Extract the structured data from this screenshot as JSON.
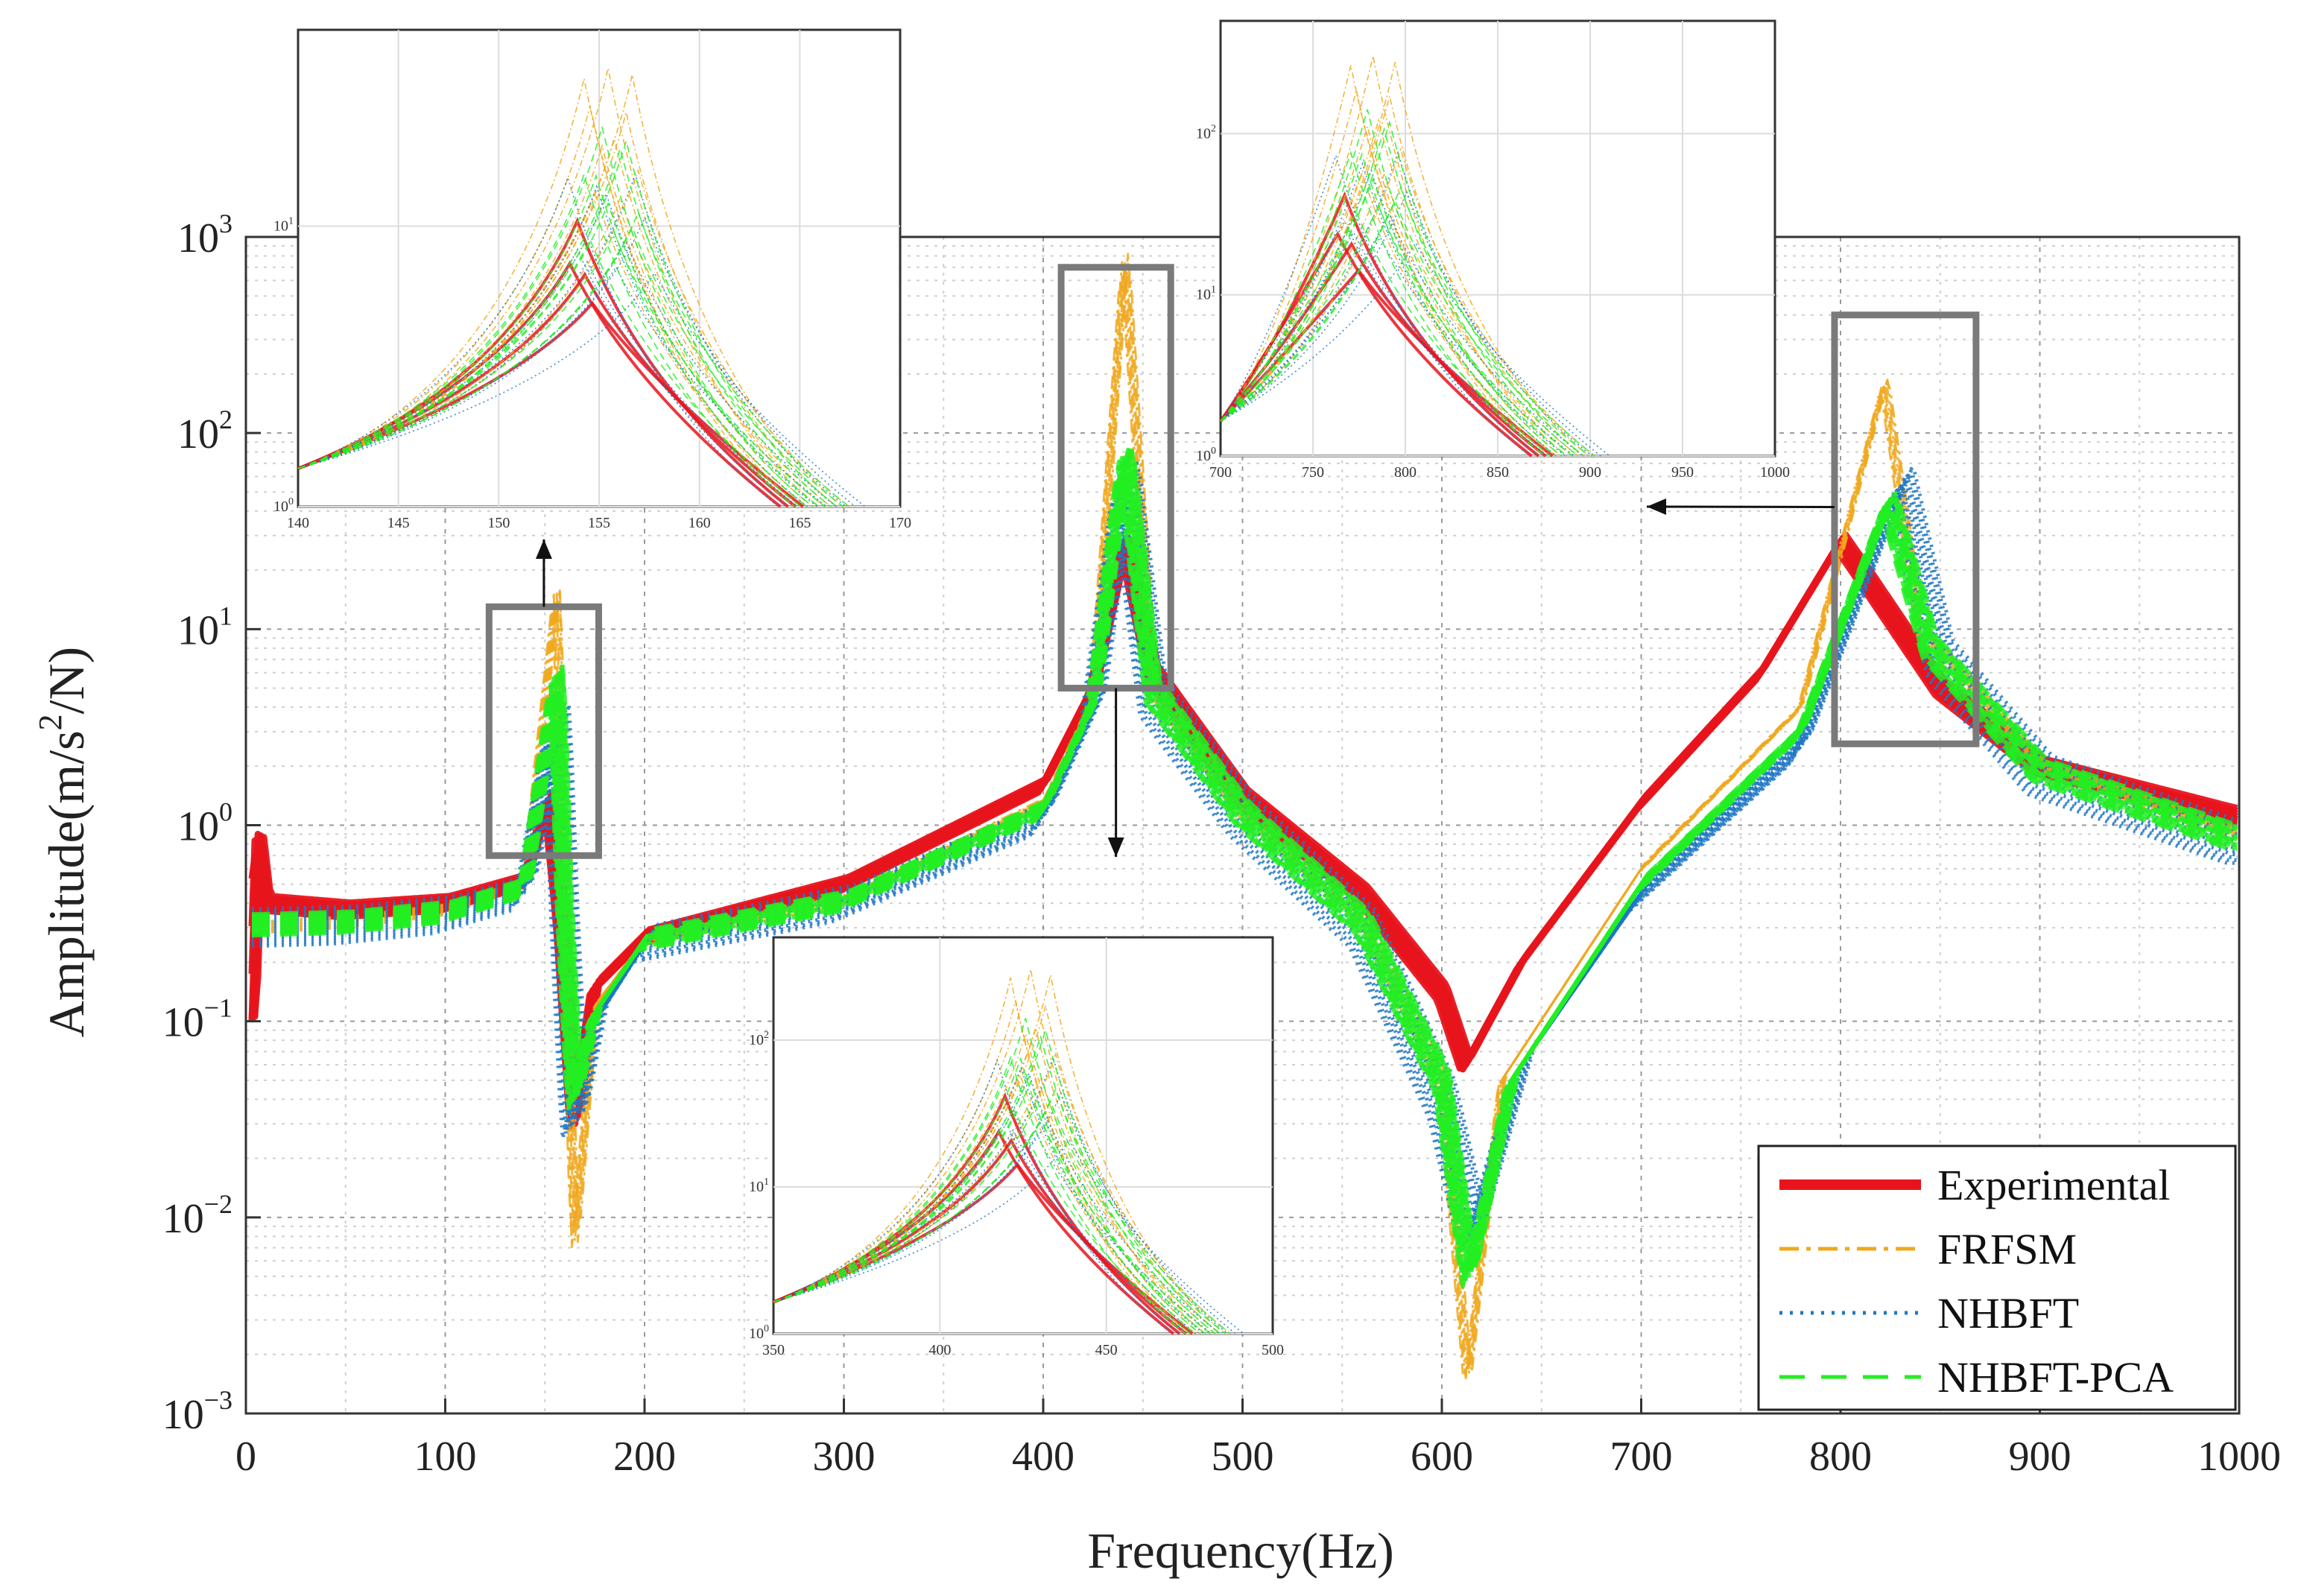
{
  "chart_data": {
    "type": "line",
    "title": "",
    "xlabel": "Frequency(Hz)",
    "ylabel": "Amplitude(m/s^2/N)",
    "ylabel_parts": {
      "main": "Amplitude(m/s",
      "sup": "2",
      "tail": "/N)"
    },
    "xlim": [
      0,
      1000
    ],
    "ylim": [
      0.001,
      1000
    ],
    "yscale": "log",
    "grid": true,
    "x_ticks": [
      0,
      100,
      200,
      300,
      400,
      500,
      600,
      700,
      800,
      900,
      1000
    ],
    "x_tick_labels": [
      "0",
      "100",
      "200",
      "300",
      "400",
      "500",
      "600",
      "700",
      "800",
      "900",
      "1000"
    ],
    "y_ticks": [
      0.001,
      0.01,
      0.1,
      1,
      10,
      100,
      1000
    ],
    "y_tick_labels": [
      {
        "base": "10",
        "exp": "−3"
      },
      {
        "base": "10",
        "exp": "−2"
      },
      {
        "base": "10",
        "exp": "−1"
      },
      {
        "base": "10",
        "exp": "0"
      },
      {
        "base": "10",
        "exp": "1"
      },
      {
        "base": "10",
        "exp": "2"
      },
      {
        "base": "10",
        "exp": "3"
      }
    ],
    "legend_position": "bottom-right",
    "series": [
      {
        "name": "Experimental",
        "color": "#e8141c",
        "style": "solid",
        "peaks": [
          152,
          441,
          805
        ],
        "antiresonances": [
          165,
          612
        ],
        "points": [
          [
            3,
            0.1
          ],
          [
            6,
            0.9
          ],
          [
            10,
            0.4
          ],
          [
            50,
            0.37
          ],
          [
            100,
            0.4
          ],
          [
            140,
            0.52
          ],
          [
            152,
            1.4
          ],
          [
            158,
            0.35
          ],
          [
            165,
            0.03
          ],
          [
            175,
            0.15
          ],
          [
            200,
            0.27
          ],
          [
            300,
            0.5
          ],
          [
            400,
            1.6
          ],
          [
            425,
            5
          ],
          [
            441,
            28
          ],
          [
            455,
            6
          ],
          [
            500,
            1.4
          ],
          [
            560,
            0.45
          ],
          [
            600,
            0.14
          ],
          [
            612,
            0.06
          ],
          [
            640,
            0.2
          ],
          [
            700,
            1.3
          ],
          [
            760,
            6
          ],
          [
            800,
            28
          ],
          [
            810,
            20
          ],
          [
            850,
            5
          ],
          [
            900,
            2
          ],
          [
            1000,
            1.1
          ]
        ]
      },
      {
        "name": "FRFSM",
        "color": "#f0a81e",
        "style": "dash-dot",
        "peaks": [
          156,
          441,
          822
        ],
        "antiresonances": [
          165,
          613
        ],
        "points": [
          [
            3,
            0.3
          ],
          [
            50,
            0.32
          ],
          [
            100,
            0.37
          ],
          [
            140,
            0.5
          ],
          [
            156,
            16
          ],
          [
            160,
            0.4
          ],
          [
            165,
            0.007
          ],
          [
            175,
            0.12
          ],
          [
            200,
            0.26
          ],
          [
            300,
            0.42
          ],
          [
            400,
            1.3
          ],
          [
            425,
            4.5
          ],
          [
            441,
            800
          ],
          [
            455,
            5
          ],
          [
            500,
            1.2
          ],
          [
            560,
            0.35
          ],
          [
            600,
            0.05
          ],
          [
            613,
            0.0015
          ],
          [
            630,
            0.05
          ],
          [
            700,
            0.6
          ],
          [
            780,
            4
          ],
          [
            822,
            180
          ],
          [
            840,
            10
          ],
          [
            900,
            2
          ],
          [
            1000,
            0.9
          ]
        ]
      },
      {
        "name": "NHBFT",
        "color": "#1f77c4",
        "style": "dotted",
        "peaks": [
          156,
          441,
          830
        ],
        "antiresonances": [
          165,
          616
        ],
        "points": [
          [
            3,
            0.3
          ],
          [
            50,
            0.31
          ],
          [
            100,
            0.35
          ],
          [
            140,
            0.46
          ],
          [
            156,
            3.5
          ],
          [
            160,
            0.3
          ],
          [
            165,
            0.03
          ],
          [
            175,
            0.1
          ],
          [
            200,
            0.25
          ],
          [
            300,
            0.4
          ],
          [
            400,
            1.1
          ],
          [
            425,
            4
          ],
          [
            441,
            60
          ],
          [
            455,
            4.5
          ],
          [
            500,
            1.1
          ],
          [
            560,
            0.3
          ],
          [
            600,
            0.04
          ],
          [
            616,
            0.008
          ],
          [
            640,
            0.06
          ],
          [
            700,
            0.45
          ],
          [
            780,
            2.5
          ],
          [
            830,
            55
          ],
          [
            850,
            7
          ],
          [
            900,
            1.8
          ],
          [
            1000,
            0.8
          ]
        ]
      },
      {
        "name": "NHBFT-PCA",
        "color": "#22ee22",
        "style": "dashed",
        "peaks": [
          156,
          441,
          824
        ],
        "antiresonances": [
          165,
          614
        ],
        "points": [
          [
            3,
            0.31
          ],
          [
            50,
            0.32
          ],
          [
            100,
            0.36
          ],
          [
            140,
            0.48
          ],
          [
            156,
            6
          ],
          [
            160,
            0.35
          ],
          [
            165,
            0.04
          ],
          [
            175,
            0.11
          ],
          [
            200,
            0.26
          ],
          [
            300,
            0.41
          ],
          [
            400,
            1.2
          ],
          [
            425,
            4.2
          ],
          [
            441,
            80
          ],
          [
            455,
            4.8
          ],
          [
            500,
            1.15
          ],
          [
            560,
            0.32
          ],
          [
            600,
            0.05
          ],
          [
            614,
            0.005
          ],
          [
            635,
            0.05
          ],
          [
            700,
            0.5
          ],
          [
            780,
            3
          ],
          [
            824,
            45
          ],
          [
            845,
            8
          ],
          [
            900,
            1.9
          ],
          [
            1000,
            0.85
          ]
        ]
      }
    ],
    "zoom_boxes": [
      {
        "x": [
          122,
          177
        ],
        "y": [
          0.7,
          13
        ]
      },
      {
        "x": [
          409,
          464
        ],
        "y": [
          5,
          700
        ]
      },
      {
        "x": [
          797,
          868
        ],
        "y": [
          2.6,
          400
        ]
      }
    ],
    "insets": [
      {
        "name": "inset-first-mode",
        "xlim": [
          140,
          170
        ],
        "x_ticks": [
          "140",
          "145",
          "150",
          "155",
          "160",
          "165",
          "170"
        ],
        "y_ticks": [
          {
            "base": "10",
            "exp": "0"
          },
          {
            "base": "10",
            "exp": "1"
          }
        ]
      },
      {
        "name": "inset-second-mode",
        "xlim": [
          350,
          500
        ],
        "x_ticks": [
          "350",
          "400",
          "450",
          "500"
        ],
        "y_ticks": [
          {
            "base": "10",
            "exp": "0"
          },
          {
            "base": "10",
            "exp": "1"
          },
          {
            "base": "10",
            "exp": "2"
          }
        ]
      },
      {
        "name": "inset-third-mode",
        "xlim": [
          700,
          1000
        ],
        "x_ticks": [
          "700",
          "750",
          "800",
          "850",
          "900",
          "950",
          "1000"
        ],
        "y_ticks": [
          {
            "base": "10",
            "exp": "0"
          },
          {
            "base": "10",
            "exp": "1"
          },
          {
            "base": "10",
            "exp": "2"
          }
        ]
      }
    ]
  }
}
